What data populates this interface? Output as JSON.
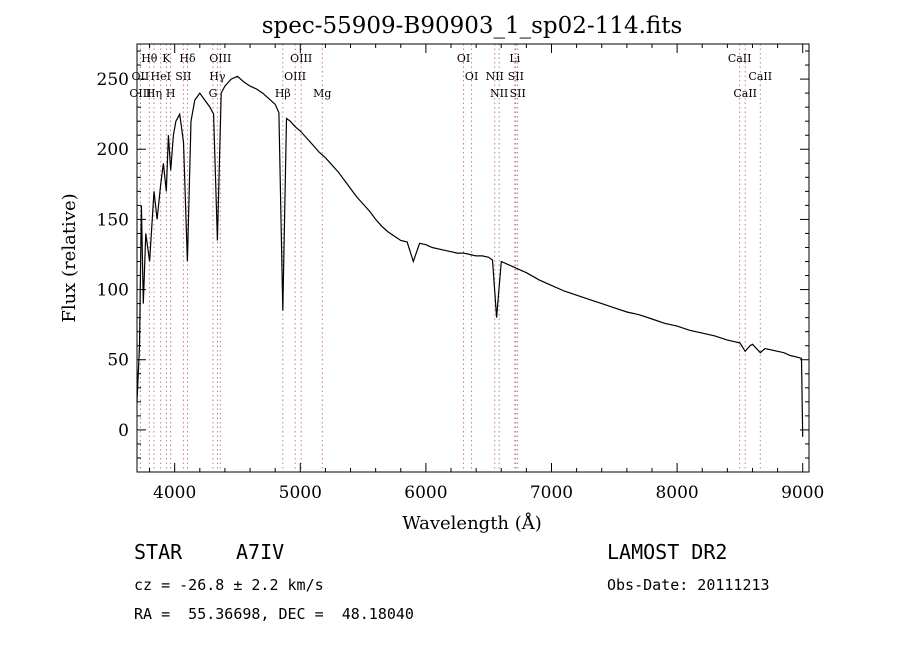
{
  "chart_data": {
    "type": "line",
    "title": "spec-55909-B90903_1_sp02-114.fits",
    "xlabel": "Wavelength (Å)",
    "ylabel": "Flux (relative)",
    "xlim": [
      3700,
      9050
    ],
    "ylim": [
      -30,
      275
    ],
    "xticks": [
      4000,
      5000,
      6000,
      7000,
      8000,
      9000
    ],
    "yticks": [
      0,
      50,
      100,
      150,
      200,
      250
    ],
    "grid": false,
    "series": [
      {
        "x": [
          3700,
          3720,
          3735,
          3750,
          3770,
          3800,
          3835,
          3860,
          3889,
          3910,
          3933,
          3950,
          3968,
          3990,
          4010,
          4040,
          4070,
          4101,
          4130,
          4160,
          4200,
          4240,
          4280,
          4310,
          4340,
          4370,
          4400,
          4450,
          4500,
          4550,
          4600,
          4650,
          4700,
          4750,
          4800,
          4830,
          4861,
          4890,
          4920,
          4960,
          5000,
          5050,
          5100,
          5150,
          5200,
          5250,
          5300,
          5350,
          5400,
          5450,
          5500,
          5550,
          5600,
          5650,
          5700,
          5750,
          5800,
          5850,
          5900,
          5950,
          6000,
          6050,
          6100,
          6150,
          6200,
          6250,
          6300,
          6350,
          6400,
          6450,
          6500,
          6530,
          6563,
          6600,
          6650,
          6700,
          6750,
          6800,
          6900,
          7000,
          7100,
          7200,
          7300,
          7400,
          7500,
          7600,
          7700,
          7800,
          7900,
          8000,
          8100,
          8200,
          8300,
          8400,
          8500,
          8542,
          8580,
          8600,
          8662,
          8700,
          8800,
          8850,
          8900,
          8950,
          8990,
          9000
        ],
        "y": [
          20,
          60,
          160,
          90,
          140,
          120,
          170,
          150,
          175,
          190,
          170,
          210,
          185,
          210,
          220,
          225,
          205,
          120,
          220,
          235,
          240,
          235,
          230,
          225,
          135,
          240,
          245,
          250,
          252,
          248,
          245,
          243,
          240,
          236,
          232,
          226,
          85,
          222,
          220,
          216,
          213,
          208,
          203,
          198,
          194,
          189,
          184,
          178,
          172,
          166,
          161,
          156,
          150,
          145,
          141,
          138,
          135,
          134,
          120,
          133,
          132,
          130,
          129,
          128,
          127,
          126,
          126,
          125,
          124,
          124,
          123,
          121,
          80,
          120,
          118,
          116,
          114,
          112,
          107,
          103,
          99,
          96,
          93,
          90,
          87,
          84,
          82,
          79,
          76,
          74,
          71,
          69,
          67,
          64,
          62,
          56,
          60,
          61,
          55,
          58,
          56,
          55,
          53,
          52,
          51,
          -5
        ]
      }
    ],
    "line_labels": [
      {
        "text": "Hθ",
        "x": 3798,
        "row": 1
      },
      {
        "text": "K",
        "x": 3934,
        "row": 1
      },
      {
        "text": "Hδ",
        "x": 4102,
        "row": 1
      },
      {
        "text": "OIII",
        "x": 4363,
        "row": 1
      },
      {
        "text": "OIII",
        "x": 5007,
        "row": 1
      },
      {
        "text": "OI",
        "x": 6300,
        "row": 1
      },
      {
        "text": "Li",
        "x": 6708,
        "row": 1
      },
      {
        "text": "CaII",
        "x": 8498,
        "row": 1
      },
      {
        "text": "OII",
        "x": 3727,
        "row": 2
      },
      {
        "text": "HeI",
        "x": 3889,
        "row": 2
      },
      {
        "text": "SII",
        "x": 4069,
        "row": 2
      },
      {
        "text": "Hγ",
        "x": 4340,
        "row": 2
      },
      {
        "text": "OIII",
        "x": 4959,
        "row": 2
      },
      {
        "text": "OI",
        "x": 6364,
        "row": 2
      },
      {
        "text": "NII",
        "x": 6548,
        "row": 2
      },
      {
        "text": "SII",
        "x": 6716,
        "row": 2
      },
      {
        "text": "CaII",
        "x": 8662,
        "row": 2
      },
      {
        "text": "OIII",
        "x": 3727,
        "row": 3
      },
      {
        "text": "Hη",
        "x": 3835,
        "row": 3
      },
      {
        "text": "H",
        "x": 3968,
        "row": 3
      },
      {
        "text": "G",
        "x": 4305,
        "row": 3
      },
      {
        "text": "Hβ",
        "x": 4861,
        "row": 3
      },
      {
        "text": "Mg",
        "x": 5175,
        "row": 3
      },
      {
        "text": "NII",
        "x": 6583,
        "row": 3
      },
      {
        "text": "SII",
        "x": 6731,
        "row": 3
      },
      {
        "text": "CaII",
        "x": 8542,
        "row": 3
      }
    ]
  },
  "info": {
    "object_type": "STAR",
    "subclass": "A7IV",
    "survey": "LAMOST DR2",
    "cz": "cz = -26.8 ± 2.2 km/s",
    "obs_date": "Obs-Date: 20111213",
    "coords": "RA =  55.36698, DEC =  48.18040"
  }
}
